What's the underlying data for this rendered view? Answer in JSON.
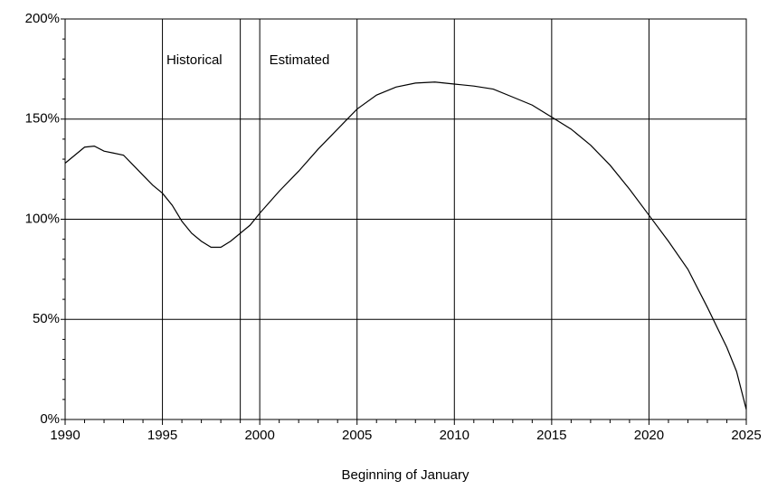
{
  "chart_data": {
    "type": "line",
    "x_label": "Beginning of January",
    "annotations": [
      "Historical",
      "Estimated"
    ],
    "divider_x": 1999,
    "xlim": [
      1990,
      2025
    ],
    "xticks": [
      1990,
      1995,
      2000,
      2005,
      2010,
      2015,
      2020,
      2025
    ],
    "xminorticks": [
      1991,
      1992,
      1993,
      1994,
      1996,
      1997,
      1998,
      1999,
      2001,
      2002,
      2003,
      2004,
      2006,
      2007,
      2008,
      2009,
      2011,
      2012,
      2013,
      2014,
      2016,
      2017,
      2018,
      2019,
      2021,
      2022,
      2023,
      2024
    ],
    "ylim": [
      0,
      200
    ],
    "yticks": [
      {
        "value": 0,
        "label": "0%"
      },
      {
        "value": 50,
        "label": "50%"
      },
      {
        "value": 100,
        "label": "100%"
      },
      {
        "value": 150,
        "label": "150%"
      },
      {
        "value": 200,
        "label": "200%"
      }
    ],
    "yminorticks": [
      10,
      20,
      30,
      40,
      60,
      70,
      80,
      90,
      110,
      120,
      130,
      140,
      160,
      170,
      180,
      190
    ],
    "grid": true,
    "x": [
      1990,
      1990.5,
      1991,
      1991.5,
      1992,
      1992.5,
      1993,
      1993.5,
      1994,
      1994.5,
      1995,
      1995.5,
      1996,
      1996.5,
      1997,
      1997.5,
      1998,
      1998.5,
      1999,
      1999.5,
      2000,
      2001,
      2002,
      2003,
      2004,
      2005,
      2006,
      2007,
      2008,
      2009,
      2010,
      2011,
      2012,
      2013,
      2014,
      2015,
      2016,
      2017,
      2018,
      2019,
      2020,
      2021,
      2022,
      2023,
      2024,
      2024.5,
      2025
    ],
    "series": [
      {
        "color": "#000000",
        "values": [
          128,
          132,
          136,
          136.5,
          134,
          133,
          132,
          127,
          122,
          117,
          113,
          107,
          99,
          93,
          89,
          86,
          86,
          89,
          93,
          97,
          103,
          114,
          124,
          135,
          145,
          155,
          162,
          166,
          168,
          168.5,
          167.5,
          166.5,
          165,
          161,
          157,
          151,
          145,
          137,
          127,
          115,
          102,
          89,
          75,
          56,
          36,
          24,
          5
        ]
      }
    ]
  }
}
